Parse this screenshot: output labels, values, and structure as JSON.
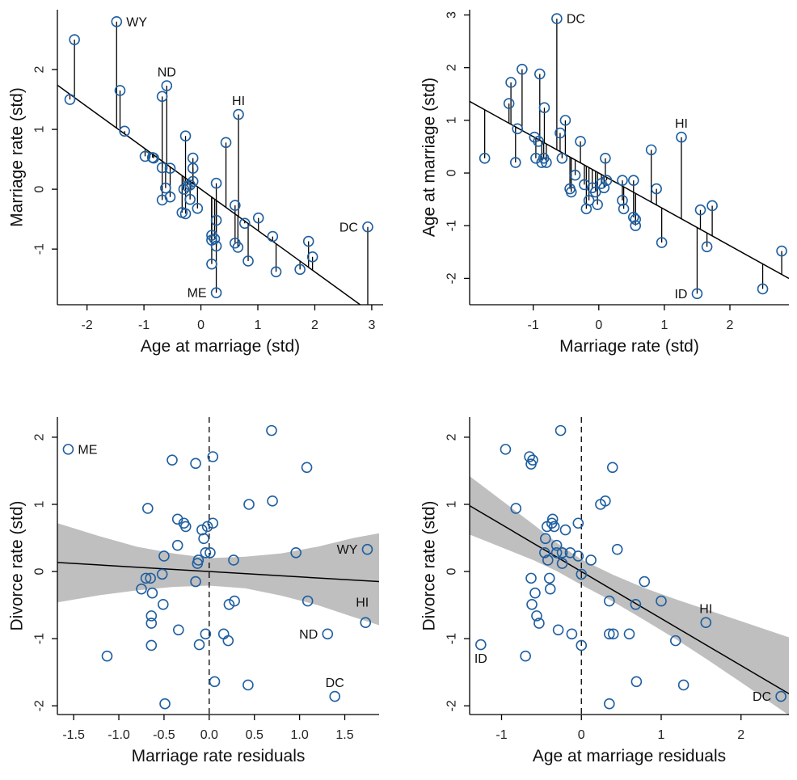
{
  "chart_data": [
    {
      "type": "scatter",
      "panel": "top-left",
      "xlabel": "Age at marriage (std)",
      "ylabel": "Marriage rate (std)",
      "xticks": [
        -2,
        -1,
        0,
        1,
        2,
        3
      ],
      "xtick_labels": [
        "-2",
        "-1",
        "0",
        "1",
        "2",
        "3"
      ],
      "yticks": [
        -1,
        0,
        1,
        2
      ],
      "ytick_labels": [
        "-1",
        "0",
        "1",
        "2"
      ],
      "xlim": [
        -2.52,
        3.2
      ],
      "ylim": [
        -1.93,
        3.0
      ],
      "fit_line": {
        "intercept": 0.0,
        "slope": -0.69
      },
      "residual_segments": true,
      "points": [
        [
          -2.3,
          1.5
        ],
        [
          -2.22,
          2.5
        ],
        [
          -1.48,
          2.8
        ],
        [
          -1.42,
          1.65
        ],
        [
          -1.34,
          0.97
        ],
        [
          -0.98,
          0.55
        ],
        [
          -0.85,
          0.53
        ],
        [
          -0.83,
          0.52
        ],
        [
          -0.68,
          0.36
        ],
        [
          -0.68,
          -0.18
        ],
        [
          -0.68,
          1.55
        ],
        [
          -0.6,
          1.73
        ],
        [
          -0.62,
          0.02
        ],
        [
          -0.54,
          0.35
        ],
        [
          -0.54,
          -0.13
        ],
        [
          -0.33,
          -0.39
        ],
        [
          -0.3,
          0.0
        ],
        [
          -0.27,
          0.89
        ],
        [
          -0.27,
          -0.41
        ],
        [
          -0.24,
          0.05
        ],
        [
          -0.19,
          0.07
        ],
        [
          -0.14,
          0.52
        ],
        [
          -0.14,
          0.35
        ],
        [
          -0.14,
          0.13
        ],
        [
          -0.19,
          -0.17
        ],
        [
          -0.06,
          -0.32
        ],
        [
          0.19,
          -0.77
        ],
        [
          0.19,
          -0.85
        ],
        [
          0.19,
          -1.25
        ],
        [
          0.24,
          -0.83
        ],
        [
          0.27,
          0.1
        ],
        [
          0.27,
          -0.52
        ],
        [
          0.27,
          -0.95
        ],
        [
          0.27,
          -1.73
        ],
        [
          0.44,
          0.78
        ],
        [
          0.6,
          -0.27
        ],
        [
          0.6,
          -0.9
        ],
        [
          0.66,
          1.25
        ],
        [
          0.65,
          -0.97
        ],
        [
          0.77,
          -0.57
        ],
        [
          0.83,
          -1.2
        ],
        [
          1.01,
          -0.48
        ],
        [
          1.26,
          -0.79
        ],
        [
          1.32,
          -1.38
        ],
        [
          1.74,
          -1.34
        ],
        [
          1.89,
          -0.87
        ],
        [
          1.96,
          -1.13
        ],
        [
          2.93,
          -0.63
        ]
      ],
      "labels": [
        {
          "text": "WY",
          "x": -1.48,
          "y": 2.8,
          "side": "right"
        },
        {
          "text": "ND",
          "x": -0.6,
          "y": 1.73,
          "side": "top"
        },
        {
          "text": "HI",
          "x": 0.66,
          "y": 1.25,
          "side": "top"
        },
        {
          "text": "ME",
          "x": 0.27,
          "y": -1.73,
          "side": "left"
        },
        {
          "text": "DC",
          "x": 2.93,
          "y": -0.63,
          "side": "left"
        }
      ]
    },
    {
      "type": "scatter",
      "panel": "top-right",
      "xlabel": "Marriage rate (std)",
      "ylabel": "Age at marriage (std)",
      "xticks": [
        -1,
        0,
        1,
        2
      ],
      "xtick_labels": [
        "-1",
        "0",
        "1",
        "2"
      ],
      "yticks": [
        -2,
        -1,
        0,
        1,
        2,
        3
      ],
      "ytick_labels": [
        "-2",
        "-1",
        "0",
        "1",
        "2",
        "3"
      ],
      "xlim": [
        -1.97,
        2.9
      ],
      "ylim": [
        -2.5,
        3.1
      ],
      "fit_line": {
        "intercept": 0.0,
        "slope": -0.69
      },
      "residual_segments": true,
      "points": [
        [
          -1.74,
          0.28
        ],
        [
          -1.37,
          1.32
        ],
        [
          -1.34,
          1.72
        ],
        [
          -1.27,
          0.2
        ],
        [
          -1.24,
          0.84
        ],
        [
          -1.17,
          1.97
        ],
        [
          -0.98,
          0.68
        ],
        [
          -0.96,
          0.28
        ],
        [
          -0.9,
          1.88
        ],
        [
          -0.92,
          0.6
        ],
        [
          -0.87,
          0.2
        ],
        [
          -0.84,
          0.28
        ],
        [
          -0.83,
          1.24
        ],
        [
          -0.8,
          0.2
        ],
        [
          -0.64,
          2.93
        ],
        [
          -0.59,
          0.76
        ],
        [
          -0.56,
          0.28
        ],
        [
          -0.51,
          1.0
        ],
        [
          -0.44,
          -0.3
        ],
        [
          -0.42,
          -0.36
        ],
        [
          -0.36,
          -0.04
        ],
        [
          -0.28,
          0.6
        ],
        [
          -0.22,
          -0.22
        ],
        [
          -0.19,
          -0.68
        ],
        [
          -0.15,
          -0.52
        ],
        [
          -0.1,
          -0.28
        ],
        [
          -0.05,
          -0.36
        ],
        [
          -0.02,
          -0.6
        ],
        [
          0.04,
          -0.2
        ],
        [
          0.08,
          -0.28
        ],
        [
          0.1,
          0.28
        ],
        [
          0.12,
          -0.14
        ],
        [
          0.36,
          -0.14
        ],
        [
          0.36,
          -0.52
        ],
        [
          0.38,
          -0.68
        ],
        [
          0.53,
          -0.14
        ],
        [
          0.53,
          -0.84
        ],
        [
          0.56,
          -0.88
        ],
        [
          0.56,
          -1.0
        ],
        [
          0.8,
          0.44
        ],
        [
          0.88,
          -0.3
        ],
        [
          0.96,
          -1.32
        ],
        [
          1.26,
          0.68
        ],
        [
          1.5,
          -2.29
        ],
        [
          1.55,
          -0.7
        ],
        [
          1.65,
          -1.4
        ],
        [
          1.73,
          -0.62
        ],
        [
          2.5,
          -2.2
        ],
        [
          2.79,
          -1.48
        ]
      ],
      "labels": [
        {
          "text": "DC",
          "x": -0.64,
          "y": 2.93,
          "side": "right"
        },
        {
          "text": "HI",
          "x": 1.26,
          "y": 0.68,
          "side": "top"
        },
        {
          "text": "ID",
          "x": 1.5,
          "y": -2.29,
          "side": "left"
        }
      ]
    },
    {
      "type": "scatter",
      "panel": "bottom-left",
      "xlabel": "Marriage rate residuals",
      "ylabel": "Divorce rate (std)",
      "xticks": [
        -1.5,
        -1.0,
        -0.5,
        0.0,
        0.5,
        1.0,
        1.5
      ],
      "xtick_labels": [
        "-1.5",
        "-1.0",
        "-0.5",
        "0.0",
        "0.5",
        "1.0",
        "1.5"
      ],
      "yticks": [
        -2,
        -1,
        0,
        1,
        2
      ],
      "ytick_labels": [
        "-2",
        "-1",
        "0",
        "1",
        "2"
      ],
      "xlim": [
        -1.68,
        1.88
      ],
      "ylim": [
        -2.13,
        2.3
      ],
      "zero_line_x": 0,
      "fit_line": {
        "intercept": 0.0,
        "slope": -0.08
      },
      "band": {
        "x": [
          -1.68,
          -1.2,
          -0.8,
          -0.4,
          0.0,
          0.4,
          0.8,
          1.2,
          1.6,
          1.88
        ],
        "lower": [
          -0.46,
          -0.35,
          -0.28,
          -0.23,
          -0.21,
          -0.25,
          -0.36,
          -0.5,
          -0.68,
          -0.8
        ],
        "upper": [
          0.72,
          0.52,
          0.37,
          0.27,
          0.2,
          0.22,
          0.27,
          0.37,
          0.5,
          0.57
        ]
      },
      "points": [
        [
          -1.56,
          1.82
        ],
        [
          -1.13,
          -1.26
        ],
        [
          -0.75,
          -0.26
        ],
        [
          -0.7,
          -0.1
        ],
        [
          -0.65,
          -0.1
        ],
        [
          -0.68,
          0.94
        ],
        [
          -0.64,
          -1.1
        ],
        [
          -0.64,
          -0.77
        ],
        [
          -0.64,
          -0.66
        ],
        [
          -0.63,
          -0.32
        ],
        [
          -0.52,
          -0.04
        ],
        [
          -0.51,
          -0.49
        ],
        [
          -0.5,
          0.23
        ],
        [
          -0.49,
          -1.97
        ],
        [
          -0.41,
          1.66
        ],
        [
          -0.35,
          0.78
        ],
        [
          -0.35,
          0.39
        ],
        [
          -0.34,
          -0.87
        ],
        [
          -0.28,
          0.72
        ],
        [
          -0.26,
          0.67
        ],
        [
          -0.15,
          1.61
        ],
        [
          -0.15,
          -0.15
        ],
        [
          -0.13,
          0.12
        ],
        [
          -0.12,
          0.17
        ],
        [
          -0.11,
          -1.09
        ],
        [
          -0.08,
          0.62
        ],
        [
          -0.06,
          0.49
        ],
        [
          -0.04,
          0.28
        ],
        [
          -0.04,
          -0.93
        ],
        [
          -0.02,
          0.67
        ],
        [
          0.01,
          0.28
        ],
        [
          0.04,
          0.72
        ],
        [
          0.04,
          1.71
        ],
        [
          0.06,
          -1.64
        ],
        [
          0.16,
          -0.93
        ],
        [
          0.21,
          -1.03
        ],
        [
          0.22,
          -0.49
        ],
        [
          0.27,
          0.17
        ],
        [
          0.28,
          -0.44
        ],
        [
          0.43,
          -1.69
        ],
        [
          0.44,
          1.0
        ],
        [
          0.69,
          2.1
        ],
        [
          0.7,
          1.05
        ],
        [
          0.96,
          0.28
        ],
        [
          1.08,
          1.55
        ],
        [
          1.09,
          -0.44
        ],
        [
          1.31,
          -0.93
        ],
        [
          1.39,
          -1.86
        ],
        [
          1.75,
          0.33
        ],
        [
          1.73,
          -0.76
        ]
      ],
      "labels": [
        {
          "text": "ME",
          "x": -1.56,
          "y": 1.82,
          "side": "right"
        },
        {
          "text": "WY",
          "x": 1.75,
          "y": 0.33,
          "side": "left"
        },
        {
          "text": "HI",
          "x": 1.73,
          "y": -0.76,
          "side": "top-left"
        },
        {
          "text": "ND",
          "x": 1.31,
          "y": -0.93,
          "side": "left"
        },
        {
          "text": "DC",
          "x": 1.39,
          "y": -1.86,
          "side": "top"
        }
      ]
    },
    {
      "type": "scatter",
      "panel": "bottom-right",
      "xlabel": "Age at marriage residuals",
      "ylabel": "Divorce rate (std)",
      "xticks": [
        -1,
        0,
        1,
        2
      ],
      "xtick_labels": [
        "-1",
        "0",
        "1",
        "2"
      ],
      "yticks": [
        -2,
        -1,
        0,
        1,
        2
      ],
      "ytick_labels": [
        "-2",
        "-1",
        "0",
        "1",
        "2"
      ],
      "xlim": [
        -1.4,
        2.6
      ],
      "ylim": [
        -2.13,
        2.3
      ],
      "zero_line_x": 0,
      "fit_line": {
        "intercept": 0.0,
        "slope": -0.7
      },
      "band": {
        "x": [
          -1.4,
          -1.0,
          -0.6,
          -0.3,
          0.0,
          0.4,
          0.8,
          1.2,
          1.6,
          2.0,
          2.6
        ],
        "lower": [
          0.55,
          0.36,
          0.17,
          0.0,
          -0.2,
          -0.45,
          -0.73,
          -1.02,
          -1.33,
          -1.65,
          -2.14
        ],
        "upper": [
          1.42,
          1.06,
          0.7,
          0.42,
          0.18,
          -0.05,
          -0.25,
          -0.42,
          -0.58,
          -0.74,
          -0.98
        ]
      },
      "points": [
        [
          -1.26,
          -1.09
        ],
        [
          -0.95,
          1.82
        ],
        [
          -0.82,
          0.94
        ],
        [
          -0.7,
          -1.26
        ],
        [
          -0.65,
          1.71
        ],
        [
          -0.63,
          1.6
        ],
        [
          -0.61,
          1.66
        ],
        [
          -0.63,
          -0.1
        ],
        [
          -0.62,
          -0.49
        ],
        [
          -0.58,
          -0.32
        ],
        [
          -0.56,
          -0.66
        ],
        [
          -0.53,
          -0.77
        ],
        [
          -0.46,
          0.28
        ],
        [
          -0.45,
          0.49
        ],
        [
          -0.43,
          0.67
        ],
        [
          -0.42,
          0.17
        ],
        [
          -0.4,
          -0.1
        ],
        [
          -0.39,
          -0.26
        ],
        [
          -0.37,
          0.72
        ],
        [
          -0.36,
          0.78
        ],
        [
          -0.34,
          0.67
        ],
        [
          -0.31,
          0.28
        ],
        [
          -0.31,
          0.39
        ],
        [
          -0.29,
          -0.87
        ],
        [
          -0.26,
          2.1
        ],
        [
          -0.24,
          0.12
        ],
        [
          -0.24,
          0.28
        ],
        [
          -0.2,
          0.62
        ],
        [
          -0.14,
          0.28
        ],
        [
          -0.12,
          -0.93
        ],
        [
          -0.04,
          0.72
        ],
        [
          -0.04,
          0.23
        ],
        [
          0.0,
          -0.04
        ],
        [
          0.0,
          -1.1
        ],
        [
          0.12,
          0.17
        ],
        [
          0.24,
          1.0
        ],
        [
          0.3,
          1.05
        ],
        [
          0.35,
          -0.44
        ],
        [
          0.35,
          -0.93
        ],
        [
          0.35,
          -1.97
        ],
        [
          0.4,
          -0.93
        ],
        [
          0.39,
          1.55
        ],
        [
          0.45,
          0.33
        ],
        [
          0.6,
          -0.93
        ],
        [
          0.68,
          -0.49
        ],
        [
          0.69,
          -1.64
        ],
        [
          0.79,
          -0.15
        ],
        [
          1.0,
          -0.44
        ],
        [
          1.18,
          -1.03
        ],
        [
          1.28,
          -1.69
        ],
        [
          1.56,
          -0.76
        ],
        [
          2.5,
          -1.86
        ]
      ],
      "labels": [
        {
          "text": "ID",
          "x": -1.26,
          "y": -1.09,
          "side": "bottom"
        },
        {
          "text": "HI",
          "x": 1.56,
          "y": -0.76,
          "side": "top"
        },
        {
          "text": "DC",
          "x": 2.5,
          "y": -1.86,
          "side": "left"
        }
      ]
    }
  ]
}
